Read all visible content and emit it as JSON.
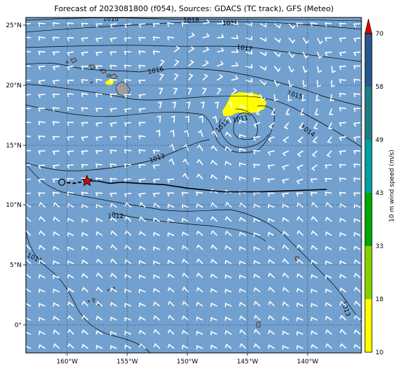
{
  "title": "Forecast of 2023081800 (f054), Sources: GDACS (TC track), GFS (Meteo)",
  "axes": {
    "lon_ticks": [
      "160°W",
      "155°W",
      "150°W",
      "145°W",
      "140°W"
    ],
    "lat_ticks": [
      "25°N",
      "20°N",
      "15°N",
      "10°N",
      "5°N",
      "0°"
    ],
    "lon_range": [
      -163.5,
      -135.5
    ],
    "lat_range": [
      -2.2,
      25.7
    ],
    "grid": true
  },
  "colorbar": {
    "label": "10 m wind speed (m/s)",
    "ticks": [
      "10",
      "18",
      "33",
      "43",
      "49",
      "58",
      "70"
    ],
    "colors": [
      "#ffff00",
      "#86d100",
      "#00a800",
      "#00a0a0",
      "#1e7e86",
      "#24578c",
      "#1d2f6b"
    ],
    "extend_color": "#e00000"
  },
  "isobars": [
    {
      "label": "1010"
    },
    {
      "label": "1018"
    },
    {
      "label": "1018"
    },
    {
      "label": "1017"
    },
    {
      "label": "1016"
    },
    {
      "label": "1015"
    },
    {
      "label": "1014"
    },
    {
      "label": "1012"
    },
    {
      "label": "1011"
    },
    {
      "label": "1013"
    },
    {
      "label": "1012"
    },
    {
      "label": "1011"
    },
    {
      "label": "1013"
    }
  ],
  "track": {
    "points": [
      [
        -138.4,
        11.4
      ],
      [
        -141,
        11.3
      ],
      [
        -144,
        11.2
      ],
      [
        -147,
        11.2
      ],
      [
        -150,
        11.5
      ],
      [
        -152,
        11.8
      ],
      [
        -154,
        11.9
      ],
      [
        -155.5,
        12.0
      ],
      [
        -156.5,
        11.9
      ],
      [
        -157.5,
        12.1
      ],
      [
        -158.4,
        12.1
      ]
    ],
    "forecast_points": [
      [
        -158.4,
        12.1
      ],
      [
        -159.5,
        11.9
      ],
      [
        -160.2,
        12.0
      ]
    ],
    "current_position": [
      -158.4,
      12.1
    ],
    "past_position": [
      -160.5,
      12.0
    ],
    "track_color": "#000000",
    "marker_color": "#e00000"
  },
  "ocean_color": "#72a1cf"
}
